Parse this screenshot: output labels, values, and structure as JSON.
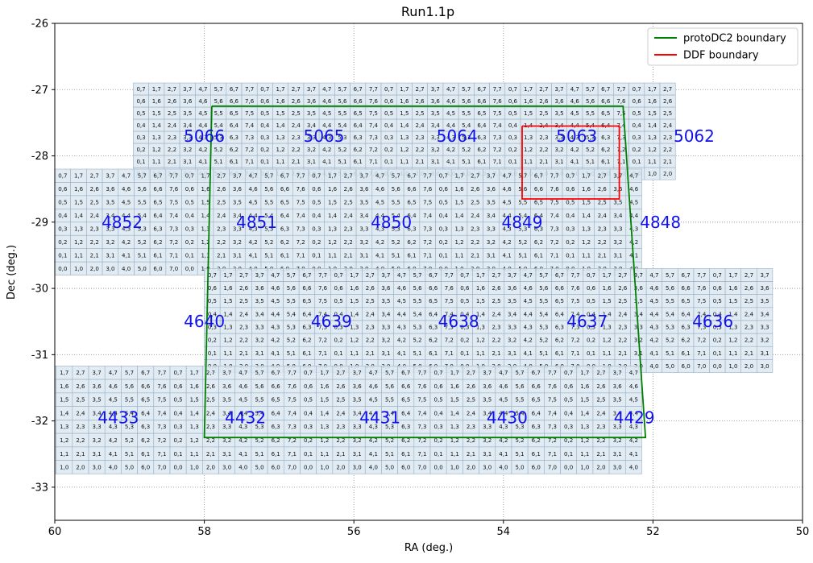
{
  "chart_data": {
    "type": "line",
    "title": "Run1.1p",
    "xlabel": "RA (deg.)",
    "ylabel": "Dec (deg.)",
    "xlim": [
      60,
      50
    ],
    "ylim": [
      -33.5,
      -26
    ],
    "x_ticks": [
      60,
      58,
      56,
      54,
      52,
      50
    ],
    "y_ticks": [
      -26,
      -27,
      -28,
      -29,
      -30,
      -31,
      -32,
      -33
    ],
    "grid": true,
    "legend_position": "upper right",
    "series": [
      {
        "name": "protoDC2 boundary",
        "color": "#008000",
        "points": [
          [
            57.9,
            -27.25
          ],
          [
            52.4,
            -27.25
          ],
          [
            52.1,
            -32.25
          ],
          [
            58.0,
            -32.25
          ],
          [
            57.9,
            -27.25
          ]
        ]
      },
      {
        "name": "DDF boundary",
        "color": "#ff0000",
        "points": [
          [
            53.75,
            -27.55
          ],
          [
            52.45,
            -27.55
          ],
          [
            52.45,
            -28.65
          ],
          [
            53.75,
            -28.65
          ],
          [
            53.75,
            -27.55
          ]
        ]
      }
    ],
    "tracts": [
      {
        "id": "5066",
        "ra": 58.0,
        "dec": -27.7
      },
      {
        "id": "5065",
        "ra": 56.4,
        "dec": -27.7
      },
      {
        "id": "5064",
        "ra": 54.62,
        "dec": -27.7
      },
      {
        "id": "5063",
        "ra": 53.02,
        "dec": -27.7
      },
      {
        "id": "5062",
        "ra": 51.45,
        "dec": -27.7
      },
      {
        "id": "4852",
        "ra": 59.1,
        "dec": -29.0
      },
      {
        "id": "4851",
        "ra": 57.3,
        "dec": -29.0
      },
      {
        "id": "4850",
        "ra": 55.5,
        "dec": -29.0
      },
      {
        "id": "4849",
        "ra": 53.75,
        "dec": -29.0
      },
      {
        "id": "4848",
        "ra": 51.9,
        "dec": -29.0
      },
      {
        "id": "4640",
        "ra": 58.0,
        "dec": -30.5
      },
      {
        "id": "4639",
        "ra": 56.3,
        "dec": -30.5
      },
      {
        "id": "4638",
        "ra": 54.6,
        "dec": -30.5
      },
      {
        "id": "4637",
        "ra": 52.88,
        "dec": -30.5
      },
      {
        "id": "4636",
        "ra": 51.2,
        "dec": -30.5
      },
      {
        "id": "4433",
        "ra": 59.15,
        "dec": -31.95
      },
      {
        "id": "4432",
        "ra": 57.45,
        "dec": -31.95
      },
      {
        "id": "4431",
        "ra": 55.65,
        "dec": -31.95
      },
      {
        "id": "4430",
        "ra": 53.95,
        "dec": -31.95
      },
      {
        "id": "4429",
        "ra": 52.25,
        "dec": -31.95
      }
    ],
    "tract_rows": [
      {
        "ra_start": 58.95,
        "ra_end": 51.7,
        "dec_top": -26.9,
        "dec_bottom": -28.36,
        "ncols": 35
      },
      {
        "ra_start": 60.0,
        "ra_end": 52.15,
        "dec_top": -28.2,
        "dec_bottom": -29.8,
        "ncols": 37
      },
      {
        "ra_start": 58.0,
        "ra_end": 50.4,
        "dec_top": -29.7,
        "dec_bottom": -31.27,
        "ncols": 36
      },
      {
        "ra_start": 60.2,
        "ra_end": 52.15,
        "dec_top": -31.17,
        "dec_bottom": -32.8,
        "ncols": 37
      }
    ],
    "patch_labels": [
      [
        "0,7",
        "1,7",
        "2,7",
        "3,7",
        "4,7",
        "5,7",
        "6,7",
        "7,7"
      ],
      [
        "0,6",
        "1,6",
        "2,6",
        "3,6",
        "4,6",
        "5,6",
        "6,6",
        "7,6"
      ],
      [
        "0,5",
        "1,5",
        "2,5",
        "3,5",
        "4,5",
        "5,5",
        "6,5",
        "7,5"
      ],
      [
        "0,4",
        "1,4",
        "2,4",
        "3,4",
        "4,4",
        "5,4",
        "6,4",
        "7,4"
      ],
      [
        "0,3",
        "1,3",
        "2,3",
        "3,3",
        "4,3",
        "5,3",
        "6,3",
        "7,3"
      ],
      [
        "0,2",
        "1,2",
        "2,2",
        "3,2",
        "4,2",
        "5,2",
        "6,2",
        "7,2"
      ],
      [
        "0,1",
        "1,1",
        "2,1",
        "3,1",
        "4,1",
        "5,1",
        "6,1",
        "7,1"
      ],
      [
        "0,0",
        "1,0",
        "2,0",
        "3,0",
        "4,0",
        "5,0",
        "6,0",
        "7,0"
      ]
    ]
  }
}
